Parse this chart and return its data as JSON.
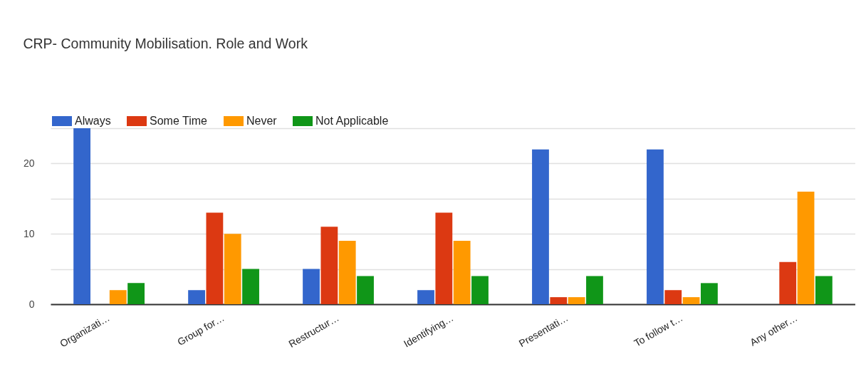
{
  "chart_data": {
    "type": "bar",
    "title": "CRP- Community Mobilisation. Role and Work",
    "categories": [
      "Organizati…",
      "Group for…",
      "Restructur…",
      "Identifying…",
      "Presentati…",
      "To follow t…",
      "Any other…"
    ],
    "series": [
      {
        "name": "Always",
        "color": "#3366cc",
        "values": [
          25,
          2,
          5,
          2,
          22,
          22,
          0
        ]
      },
      {
        "name": "Some Time",
        "color": "#dc3912",
        "values": [
          0,
          13,
          11,
          13,
          1,
          2,
          6
        ]
      },
      {
        "name": "Never",
        "color": "#ff9900",
        "values": [
          2,
          10,
          9,
          9,
          1,
          1,
          16
        ]
      },
      {
        "name": "Not Applicable",
        "color": "#109618",
        "values": [
          3,
          5,
          4,
          4,
          4,
          3,
          4
        ]
      }
    ],
    "ylim": [
      0,
      25
    ],
    "yticks": [
      0,
      {
        "value": 5,
        "label": null
      },
      10,
      {
        "value": 15,
        "label": null
      },
      20,
      {
        "value": 25,
        "label": null
      }
    ],
    "grid": "y",
    "legend": "top left"
  }
}
